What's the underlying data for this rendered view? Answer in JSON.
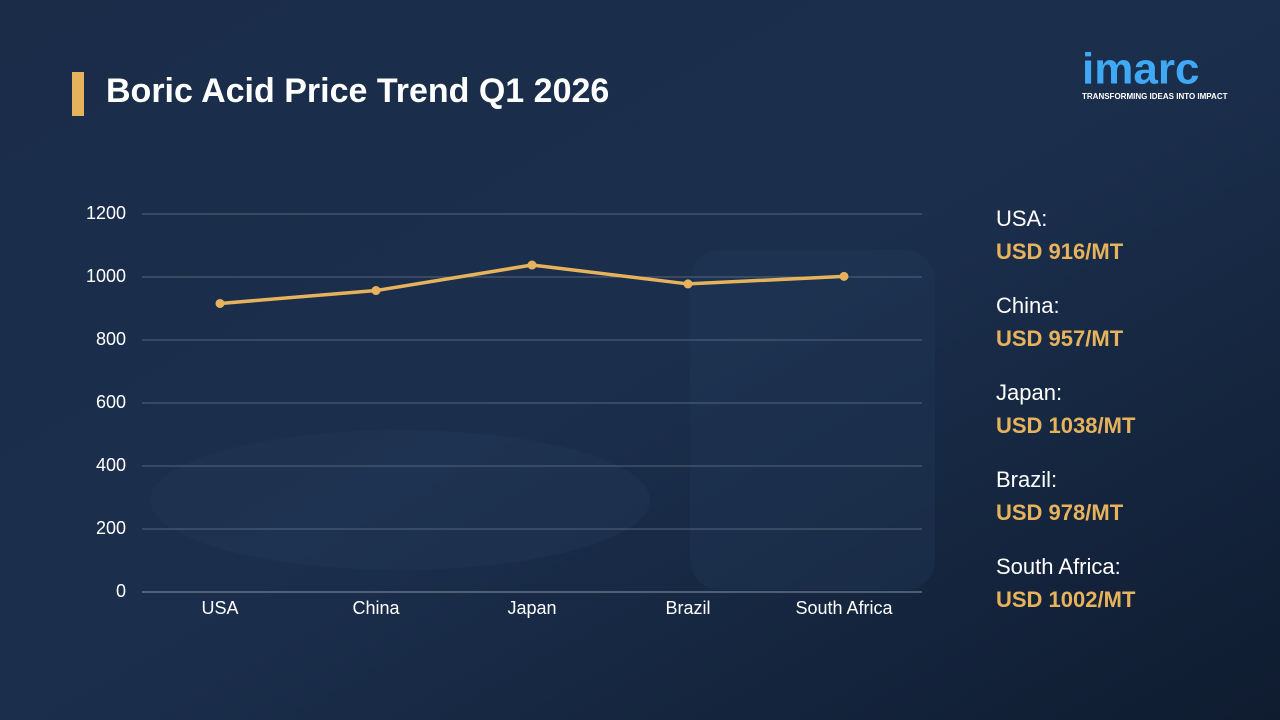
{
  "chart_data": {
    "type": "line",
    "title": "Boric Acid Price Trend Q1 2026",
    "categories": [
      "USA",
      "China",
      "Japan",
      "Brazil",
      "South Africa"
    ],
    "values": [
      916,
      957,
      1038,
      978,
      1002
    ],
    "value_labels": [
      "USD 916/MT",
      "USD 957/MT",
      "USD 1038/MT",
      "USD 978/MT",
      "USD 1002/MT"
    ],
    "color": "#e6b35c",
    "ylim": [
      0,
      1200
    ],
    "yticks": [
      0,
      200,
      400,
      600,
      800,
      1000,
      1200
    ],
    "grid": true
  },
  "panel": {
    "regions": [
      "USA:",
      "China:",
      "Japan:",
      "Brazil:",
      "South Africa:"
    ]
  },
  "logo": {
    "name": "imarc",
    "tagline": "TRANSFORMING IDEAS INTO IMPACT"
  }
}
